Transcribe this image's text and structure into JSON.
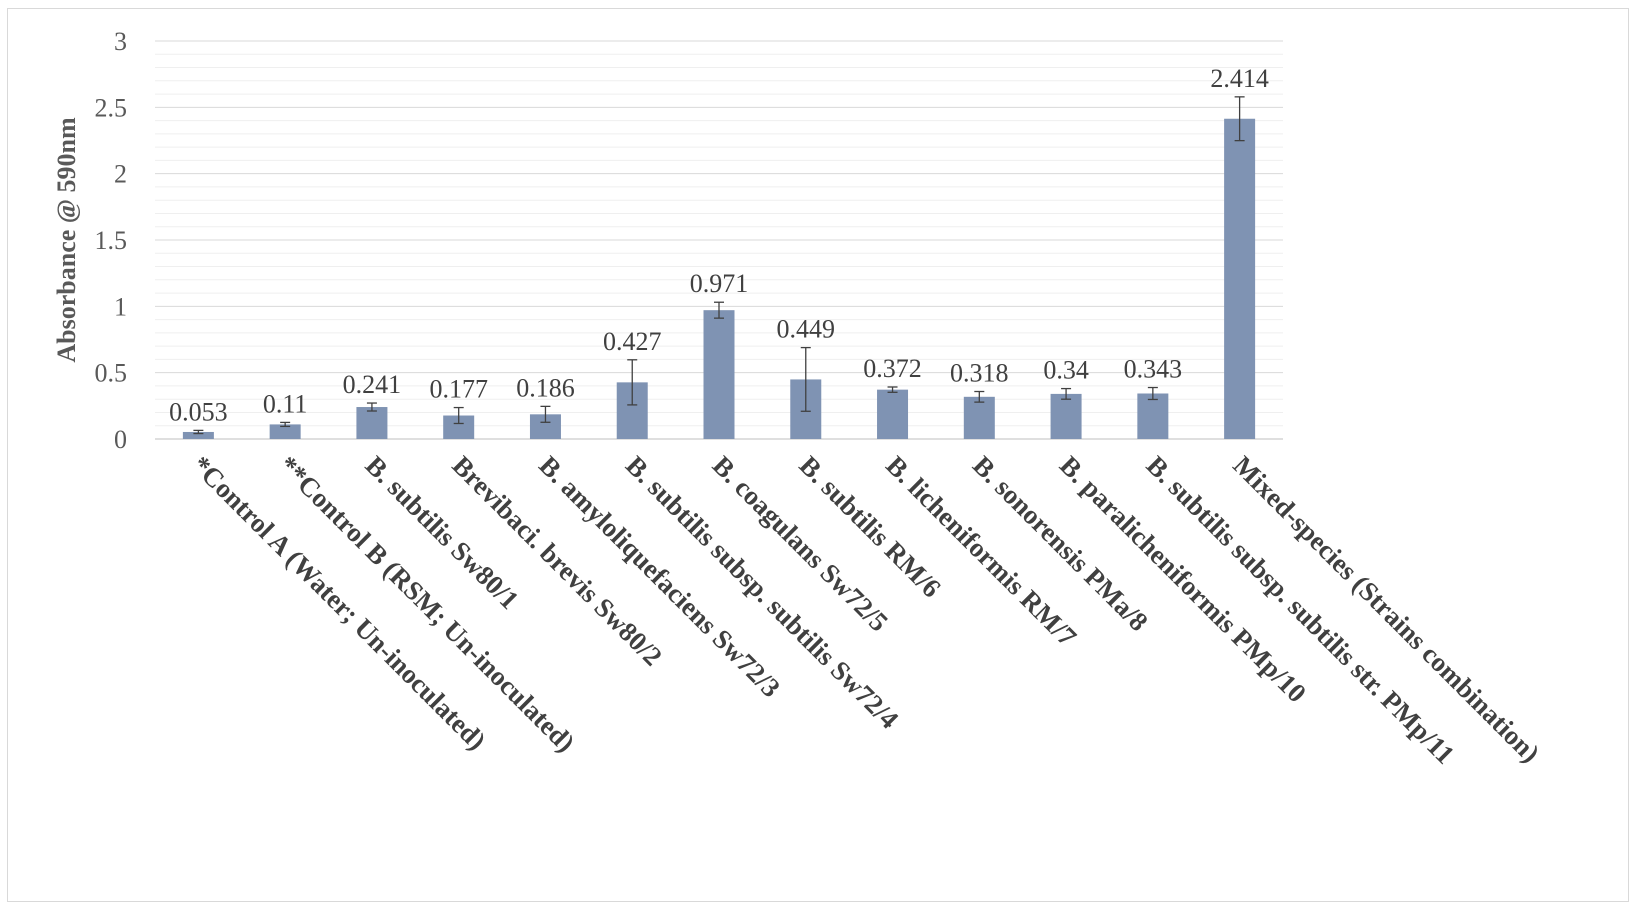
{
  "chart_data": {
    "type": "bar",
    "title": "",
    "xlabel": "",
    "ylabel": "Absorbance @ 590nm",
    "ylim": [
      0,
      3
    ],
    "yticks": [
      "0",
      "0.5",
      "1",
      "1.5",
      "2",
      "2.5",
      "3"
    ],
    "ytick_values": [
      0,
      0.5,
      1,
      1.5,
      2,
      2.5,
      3
    ],
    "grid": true,
    "legend": "none",
    "bar_color": "#7f93b3",
    "categories": [
      "*Control A (Water; Un-inoculated)",
      "**Control B (RSM; Un-inoculated)",
      "B. subtilis Sw80/1",
      "Brevibaci. brevis Sw80/2",
      "B. amyloliquefaciens Sw72/3",
      "B. subtilis subsp. subtilis Sw72/4",
      "B. coagulans Sw72/5",
      "B. subtilis RM/6",
      "B. licheniformis RM/7",
      "B. sonorensis PMa/8",
      "B. paralicheniformis PMp/10",
      "B. subtilis subsp. subtilis str. PMp/11",
      "Mixed-species (Strains combination)"
    ],
    "values": [
      0.053,
      0.11,
      0.241,
      0.177,
      0.186,
      0.427,
      0.971,
      0.449,
      0.372,
      0.318,
      0.34,
      0.343,
      2.414
    ],
    "value_labels": [
      "0.053",
      "0.11",
      "0.241",
      "0.177",
      "0.186",
      "0.427",
      "0.971",
      "0.449",
      "0.372",
      "0.318",
      "0.34",
      "0.343",
      "2.414"
    ],
    "errors": [
      0.012,
      0.015,
      0.03,
      0.06,
      0.06,
      0.17,
      0.06,
      0.24,
      0.02,
      0.04,
      0.04,
      0.045,
      0.165
    ]
  }
}
